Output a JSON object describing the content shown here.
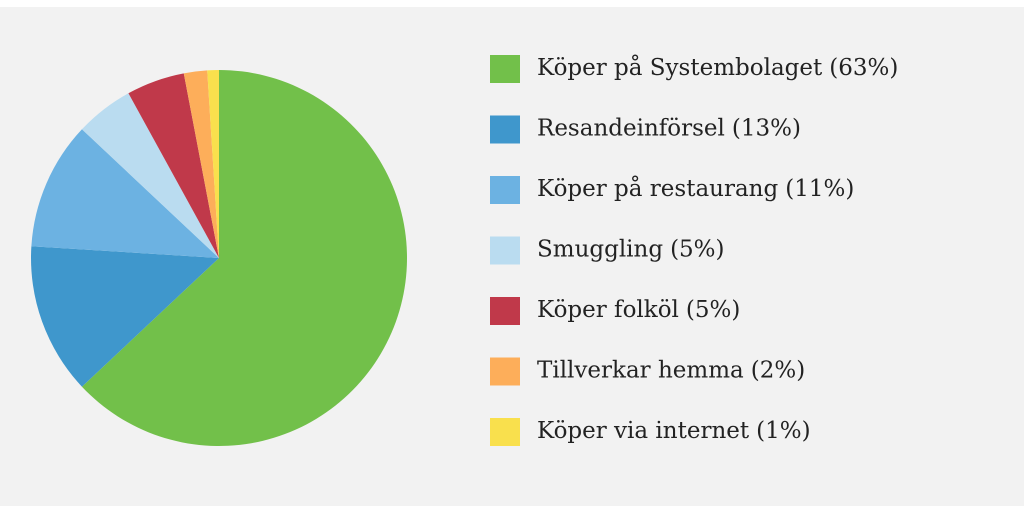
{
  "chart_data": {
    "type": "pie",
    "categories": [
      "Köper på Systembolaget",
      "Resandeinförsel",
      "Köper på restaurang",
      "Smuggling",
      "Köper folköl",
      "Tillverkar hemma",
      "Köper via internet"
    ],
    "values": [
      63,
      13,
      11,
      5,
      5,
      2,
      1
    ],
    "value_labels": [
      "(63%)",
      "(13%)",
      "(11%)",
      "(5%)",
      "(5%)",
      "(2%)",
      "(1%)"
    ],
    "colors": [
      "#72c04a",
      "#3f97cc",
      "#6cb2e2",
      "#badcf0",
      "#c0394a",
      "#fdae5a",
      "#f9e04d"
    ]
  }
}
